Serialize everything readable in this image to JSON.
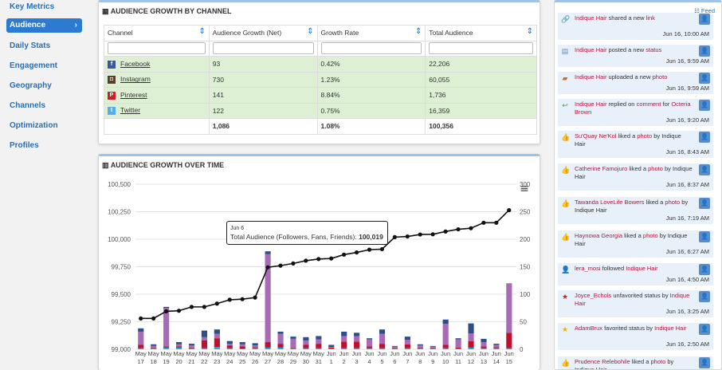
{
  "sidebar": {
    "items": [
      "Key Metrics",
      "Audience",
      "Daily Stats",
      "Engagement",
      "Geography",
      "Channels",
      "Optimization",
      "Profiles"
    ],
    "active": "Audience",
    "chevron": "›"
  },
  "table_panel": {
    "title": "AUDIENCE GROWTH BY CHANNEL",
    "columns": [
      "Channel",
      "Audience Growth (Net)",
      "Growth Rate",
      "Total Audience"
    ],
    "rows": [
      {
        "channel": "Facebook",
        "growth": "93",
        "rate": "0.42%",
        "total": "22,206",
        "icon": "f",
        "color": "#3b5998"
      },
      {
        "channel": "Instagram",
        "growth": "730",
        "rate": "1.23%",
        "total": "60,055",
        "icon": "◘",
        "color": "#5a3d2b"
      },
      {
        "channel": "Pinterest",
        "growth": "141",
        "rate": "8.84%",
        "total": "1,736",
        "icon": "P",
        "color": "#cb2027"
      },
      {
        "channel": "Twitter",
        "growth": "122",
        "rate": "0.75%",
        "total": "16,359",
        "icon": "t",
        "color": "#55acee"
      }
    ],
    "totals": {
      "growth": "1,086",
      "rate": "1.08%",
      "total": "100,356"
    }
  },
  "chart_panel": {
    "title": "AUDIENCE GROWTH OVER TIME",
    "menu_icon": "≡"
  },
  "chart_data": {
    "type": "line+stacked-bar",
    "x": [
      "May 17",
      "May 18",
      "May 19",
      "May 20",
      "May 21",
      "May 22",
      "May 23",
      "May 24",
      "May 25",
      "May 26",
      "May 27",
      "May 28",
      "May 29",
      "May 30",
      "May 31",
      "Jun 1",
      "Jun 2",
      "Jun 3",
      "Jun 4",
      "Jun 5",
      "Jun 6",
      "Jun 7",
      "Jun 8",
      "Jun 9",
      "Jun 10",
      "Jun 11",
      "Jun 12",
      "Jun 13",
      "Jun 14",
      "Jun 15"
    ],
    "x_month": [
      "May",
      "May",
      "May",
      "May",
      "May",
      "May",
      "May",
      "May",
      "May",
      "May",
      "May",
      "May",
      "May",
      "May",
      "May",
      "Jun",
      "Jun",
      "Jun",
      "Jun",
      "Jun",
      "Jun",
      "Jun",
      "Jun",
      "Jun",
      "Jun",
      "Jun",
      "Jun",
      "Jun",
      "Jun",
      "Jun"
    ],
    "x_day": [
      "17",
      "18",
      "19",
      "20",
      "21",
      "22",
      "23",
      "24",
      "25",
      "26",
      "27",
      "28",
      "29",
      "30",
      "31",
      "1",
      "2",
      "3",
      "4",
      "5",
      "6",
      "7",
      "8",
      "9",
      "10",
      "11",
      "12",
      "13",
      "14",
      "15"
    ],
    "line": {
      "name": "Total Audience (Followers, Fans, Friends)",
      "values": [
        99280,
        99280,
        99345,
        99350,
        99385,
        99385,
        99415,
        99450,
        99455,
        99470,
        99745,
        99760,
        99780,
        99805,
        99820,
        99825,
        99860,
        99880,
        99905,
        99910,
        100019,
        100025,
        100043,
        100045,
        100070,
        100090,
        100100,
        100150,
        100150,
        100264
      ]
    },
    "bars": {
      "colors": [
        "#29a3e0",
        "#c0102a",
        "#a86bb5",
        "#2c4f8a"
      ],
      "series": [
        {
          "values": [
            2,
            2,
            3,
            3,
            2,
            2,
            4,
            2,
            1,
            2,
            3,
            3,
            2,
            2,
            2,
            1,
            2,
            2,
            2,
            2,
            2,
            2,
            2,
            2,
            2,
            1,
            3,
            2,
            2,
            2
          ]
        },
        {
          "values": [
            6,
            1,
            2,
            2,
            1,
            14,
            16,
            5,
            4,
            2,
            10,
            7,
            1,
            6,
            8,
            2,
            12,
            12,
            3,
            8,
            1,
            7,
            1,
            1,
            6,
            2,
            12,
            3,
            2,
            28
          ]
        },
        {
          "values": [
            24,
            3,
            70,
            4,
            4,
            6,
            8,
            3,
            4,
            3,
            160,
            18,
            16,
            8,
            8,
            1,
            10,
            10,
            13,
            18,
            2,
            8,
            4,
            2,
            38,
            15,
            14,
            8,
            4,
            90
          ]
        },
        {
          "values": [
            6,
            3,
            2,
            4,
            3,
            12,
            8,
            5,
            4,
            4,
            5,
            4,
            4,
            6,
            6,
            4,
            8,
            6,
            2,
            8,
            1,
            6,
            2,
            1,
            8,
            2,
            18,
            6,
            2,
            0
          ]
        }
      ]
    },
    "y_left": {
      "ticks": [
        "99,000",
        "99,250",
        "99,500",
        "99,750",
        "100,000",
        "100,250",
        "100,500"
      ],
      "min": 99000,
      "max": 100500
    },
    "y_right": {
      "ticks": [
        "0",
        "50",
        "100",
        "150",
        "200",
        "250",
        "300"
      ],
      "min": 0,
      "max": 300
    },
    "tooltip": {
      "date": "Jun 6",
      "label": "Total Audience (Followers, Fans, Friends): ",
      "value": "100,019"
    }
  },
  "feed": {
    "header": "Feed",
    "items": [
      {
        "icon": "🔗",
        "icolor": "#777",
        "parts": [
          [
            "Indique Hair",
            1
          ],
          [
            " shared a new ",
            0
          ],
          [
            "link",
            1
          ]
        ],
        "time": "Jun 16, 10:00 AM"
      },
      {
        "icon": "▤",
        "icolor": "#5b8dc4",
        "parts": [
          [
            "Indique Hair",
            1
          ],
          [
            " posted a new ",
            0
          ],
          [
            "status",
            1
          ]
        ],
        "time": "Jun 16, 9:59 AM"
      },
      {
        "icon": "▰",
        "icolor": "#c96a28",
        "parts": [
          [
            "Indique Hair",
            1
          ],
          [
            " uploaded a new ",
            0
          ],
          [
            "photo",
            1
          ]
        ],
        "time": "Jun 16, 9:59 AM"
      },
      {
        "icon": "↩",
        "icolor": "#5a9e3a",
        "parts": [
          [
            "Indique Hair",
            1
          ],
          [
            " replied on ",
            0
          ],
          [
            "comment",
            1
          ],
          [
            " for ",
            0
          ],
          [
            "Octeria Brown",
            1
          ]
        ],
        "time": "Jun 16, 9:20 AM"
      },
      {
        "icon": "👍",
        "icolor": "#3a9e2a",
        "parts": [
          [
            "Su'Quay Ne'Kol",
            1
          ],
          [
            " liked a ",
            0
          ],
          [
            "photo",
            1
          ],
          [
            " by Indique Hair",
            0
          ]
        ],
        "time": "Jun 16, 8:43 AM"
      },
      {
        "icon": "👍",
        "icolor": "#3a9e2a",
        "parts": [
          [
            "Catherine Famojuro",
            1
          ],
          [
            " liked a ",
            0
          ],
          [
            "photo",
            1
          ],
          [
            " by Indique Hair",
            0
          ]
        ],
        "time": "Jun 16, 8:37 AM"
      },
      {
        "icon": "👍",
        "icolor": "#3a9e2a",
        "parts": [
          [
            "Tawanda LoveLife Bowers",
            1
          ],
          [
            " liked a ",
            0
          ],
          [
            "photo",
            1
          ],
          [
            " by Indique Hair",
            0
          ]
        ],
        "time": "Jun 16, 7:19 AM"
      },
      {
        "icon": "👍",
        "icolor": "#3a9e2a",
        "parts": [
          [
            "Haynowa Georgia",
            1
          ],
          [
            " liked a ",
            0
          ],
          [
            "photo",
            1
          ],
          [
            " by Indique Hair",
            0
          ]
        ],
        "time": "Jun 16, 6:27 AM"
      },
      {
        "icon": "👤",
        "icolor": "#2c7bd0",
        "parts": [
          [
            "lera_mosi",
            1
          ],
          [
            " followed ",
            0
          ],
          [
            "Indique Hair",
            1
          ]
        ],
        "time": "Jun 16, 4:50 AM"
      },
      {
        "icon": "★",
        "icolor": "#d42020",
        "parts": [
          [
            "Joyce_Echols",
            1
          ],
          [
            " unfavorited status by ",
            0
          ],
          [
            "Indique Hair",
            1
          ]
        ],
        "time": "Jun 16, 3:25 AM"
      },
      {
        "icon": "★",
        "icolor": "#e6b422",
        "parts": [
          [
            "AdamBrux",
            1
          ],
          [
            " favorited status by ",
            0
          ],
          [
            "Indique Hair",
            1
          ]
        ],
        "time": "Jun 16, 2:50 AM"
      },
      {
        "icon": "👍",
        "icolor": "#3a9e2a",
        "parts": [
          [
            "Prudence Relebohile",
            1
          ],
          [
            " liked a ",
            0
          ],
          [
            "photo",
            1
          ],
          [
            " by Indique Hair",
            0
          ]
        ],
        "time": ""
      }
    ]
  }
}
